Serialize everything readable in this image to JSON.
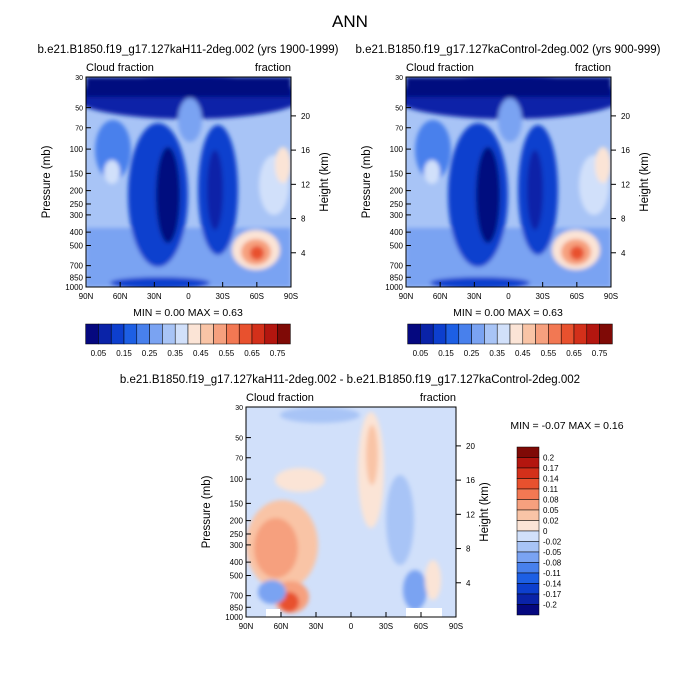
{
  "chart_data": {
    "type": "heatmap",
    "title": "ANN",
    "panels": [
      {
        "name": "case",
        "title": "b.e21.B1850.f19_g17.127kaH11-2deg.002 (yrs 1900-1999)",
        "left_label": "Cloud fraction",
        "right_label": "fraction",
        "ylabel": "Pressure (mb)",
        "y2label": "Height (km)",
        "stats": "MIN =  0.00  MAX =  0.63",
        "colormap": "seq",
        "xlim": [
          90,
          -90
        ],
        "ylim": [
          1000,
          30
        ]
      },
      {
        "name": "control",
        "title": "b.e21.B1850.f19_g17.127kaControl-2deg.002 (yrs 900-999)",
        "left_label": "Cloud fraction",
        "right_label": "fraction",
        "ylabel": "Pressure (mb)",
        "y2label": "Height (km)",
        "stats": "MIN =  0.00  MAX =  0.63",
        "colormap": "seq",
        "xlim": [
          90,
          -90
        ],
        "ylim": [
          1000,
          30
        ]
      },
      {
        "name": "difference",
        "title": "b.e21.B1850.f19_g17.127kaH11-2deg.002 - b.e21.B1850.f19_g17.127kaControl-2deg.002",
        "left_label": "Cloud fraction",
        "right_label": "fraction",
        "ylabel": "Pressure (mb)",
        "y2label": "Height (km)",
        "stats": "MIN = -0.07  MAX =  0.16",
        "colormap": "diff",
        "xlim": [
          90,
          -90
        ],
        "ylim": [
          1000,
          30
        ]
      }
    ],
    "x_ticks": [
      "90N",
      "60N",
      "30N",
      "0",
      "30S",
      "60S",
      "90S"
    ],
    "x_tick_values": [
      90,
      60,
      30,
      0,
      -30,
      -60,
      -90
    ],
    "p_ticks": [
      "30",
      "50",
      "70",
      "100",
      "150",
      "200",
      "250",
      "300",
      "400",
      "500",
      "700",
      "850",
      "1000"
    ],
    "p_tick_values": [
      30,
      50,
      70,
      100,
      150,
      200,
      250,
      300,
      400,
      500,
      700,
      850,
      1000
    ],
    "h_ticks": [
      "20",
      "16",
      "12",
      "8",
      "4"
    ],
    "h_tick_values": [
      20,
      16,
      12,
      8,
      4
    ],
    "seq_colorbar": {
      "labels": [
        "0.05",
        "0.15",
        "0.25",
        "0.35",
        "0.45",
        "0.55",
        "0.65",
        "0.75"
      ],
      "colors": [
        "#05087f",
        "#0a23a8",
        "#0d3fce",
        "#1d5fe4",
        "#4880ec",
        "#7aa3f2",
        "#a8c4f6",
        "#d1e0fa",
        "#fbe4d6",
        "#f9c4a6",
        "#f6a07e",
        "#f27853",
        "#e8512e",
        "#d3301a",
        "#b3160f",
        "#7f0a06"
      ]
    },
    "diff_colorbar": {
      "labels": [
        "0.2",
        "0.17",
        "0.14",
        "0.11",
        "0.08",
        "0.05",
        "0.02",
        "0",
        "-0.02",
        "-0.05",
        "-0.08",
        "-0.11",
        "-0.14",
        "-0.17",
        "-0.2"
      ],
      "colors": [
        "#7f0a06",
        "#b3160f",
        "#d3301a",
        "#e8512e",
        "#f27853",
        "#f6a07e",
        "#f9c4a6",
        "#fbe4d6",
        "#d1e0fa",
        "#a8c4f6",
        "#7aa3f2",
        "#4880ec",
        "#1d5fe4",
        "#0d3fce",
        "#0a23a8",
        "#05087f"
      ]
    }
  }
}
